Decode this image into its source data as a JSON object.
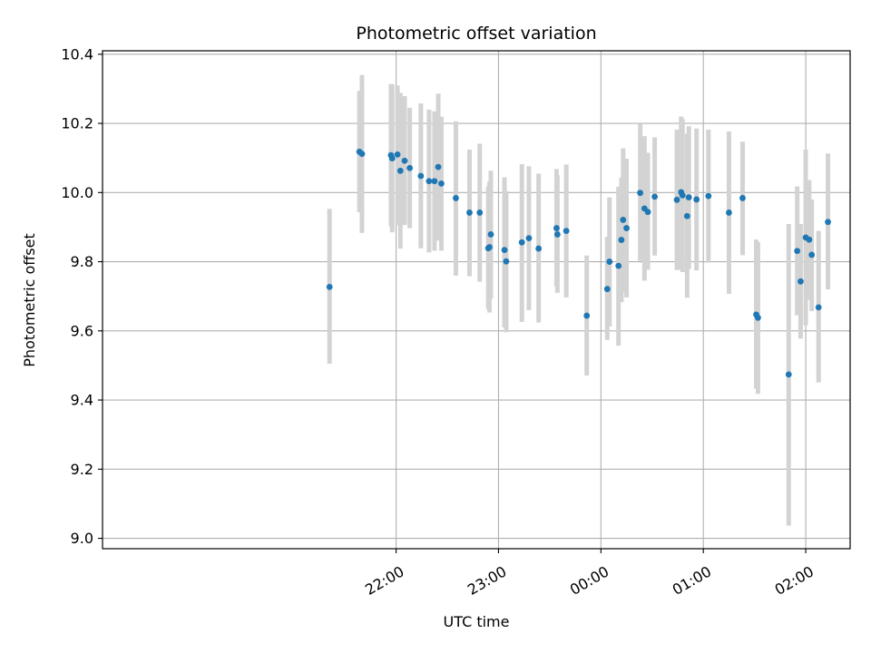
{
  "chart_data": {
    "type": "scatter",
    "title": "Photometric offset variation",
    "xlabel": "UTC time",
    "ylabel": "Photometric offset",
    "x_axis": {
      "unit": "minutes relative to 00:00 UTC",
      "range": [
        -292,
        146
      ],
      "ticks": [
        {
          "value": -120,
          "label": "22:00"
        },
        {
          "value": -60,
          "label": "23:00"
        },
        {
          "value": 0,
          "label": "00:00"
        },
        {
          "value": 60,
          "label": "01:00"
        },
        {
          "value": 120,
          "label": "02:00"
        }
      ]
    },
    "y_axis": {
      "range": [
        8.97,
        10.41
      ],
      "ticks": [
        {
          "value": 9.0,
          "label": "9.0"
        },
        {
          "value": 9.2,
          "label": "9.2"
        },
        {
          "value": 9.4,
          "label": "9.4"
        },
        {
          "value": 9.6,
          "label": "9.6"
        },
        {
          "value": 9.8,
          "label": "9.8"
        },
        {
          "value": 10.0,
          "label": "10.0"
        },
        {
          "value": 10.2,
          "label": "10.2"
        },
        {
          "value": 10.4,
          "label": "10.4"
        }
      ]
    },
    "grid": true,
    "legend": "none",
    "colors": {
      "point": "#1f77b4",
      "errorbar": "#d3d3d3",
      "grid": "#b0b0b0"
    },
    "series": [
      {
        "points": [
          {
            "x": -159,
            "y": 9.727,
            "lo": 9.505,
            "hi": 9.953
          },
          {
            "x": -141.5,
            "y": 10.118,
            "lo": 9.943,
            "hi": 10.294
          },
          {
            "x": -140,
            "y": 10.112,
            "lo": 9.883,
            "hi": 10.34
          },
          {
            "x": -123,
            "y": 10.108,
            "lo": 9.902,
            "hi": 10.314
          },
          {
            "x": -122.3,
            "y": 10.099,
            "lo": 9.885,
            "hi": 10.313
          },
          {
            "x": -119.2,
            "y": 10.11,
            "lo": 9.905,
            "hi": 10.31
          },
          {
            "x": -117.5,
            "y": 10.063,
            "lo": 9.838,
            "hi": 10.288
          },
          {
            "x": -115,
            "y": 10.092,
            "lo": 9.906,
            "hi": 10.279
          },
          {
            "x": -112,
            "y": 10.071,
            "lo": 9.897,
            "hi": 10.245
          },
          {
            "x": -105.5,
            "y": 10.048,
            "lo": 9.839,
            "hi": 10.258
          },
          {
            "x": -100.7,
            "y": 10.033,
            "lo": 9.827,
            "hi": 10.24
          },
          {
            "x": -97.5,
            "y": 10.033,
            "lo": 9.832,
            "hi": 10.235
          },
          {
            "x": -95.3,
            "y": 10.074,
            "lo": 9.861,
            "hi": 10.286
          },
          {
            "x": -93.5,
            "y": 10.026,
            "lo": 9.832,
            "hi": 10.22
          },
          {
            "x": -85,
            "y": 9.984,
            "lo": 9.76,
            "hi": 10.206
          },
          {
            "x": -77,
            "y": 9.942,
            "lo": 9.758,
            "hi": 10.124
          },
          {
            "x": -71,
            "y": 9.942,
            "lo": 9.742,
            "hi": 10.141
          },
          {
            "x": -66,
            "y": 9.839,
            "lo": 9.663,
            "hi": 10.018
          },
          {
            "x": -65.3,
            "y": 9.842,
            "lo": 9.653,
            "hi": 10.032
          },
          {
            "x": -64.5,
            "y": 9.879,
            "lo": 9.693,
            "hi": 10.063
          },
          {
            "x": -56.5,
            "y": 9.834,
            "lo": 9.61,
            "hi": 10.044
          },
          {
            "x": -55.5,
            "y": 9.801,
            "lo": 9.596,
            "hi": 10.004
          },
          {
            "x": -46.3,
            "y": 9.856,
            "lo": 9.626,
            "hi": 10.082
          },
          {
            "x": -42.2,
            "y": 9.868,
            "lo": 9.66,
            "hi": 10.076
          },
          {
            "x": -36.5,
            "y": 9.838,
            "lo": 9.624,
            "hi": 10.055
          },
          {
            "x": -26,
            "y": 9.897,
            "lo": 9.728,
            "hi": 10.068
          },
          {
            "x": -25.5,
            "y": 9.879,
            "lo": 9.71,
            "hi": 10.05
          },
          {
            "x": -20.3,
            "y": 9.889,
            "lo": 9.697,
            "hi": 10.081
          },
          {
            "x": -8.3,
            "y": 9.644,
            "lo": 9.471,
            "hi": 9.818
          },
          {
            "x": 3.7,
            "y": 9.721,
            "lo": 9.574,
            "hi": 9.872
          },
          {
            "x": 5,
            "y": 9.8,
            "lo": 9.613,
            "hi": 9.986
          },
          {
            "x": 10.3,
            "y": 9.788,
            "lo": 9.557,
            "hi": 10.017
          },
          {
            "x": 12,
            "y": 9.863,
            "lo": 9.683,
            "hi": 10.043
          },
          {
            "x": 13,
            "y": 9.921,
            "lo": 9.712,
            "hi": 10.128
          },
          {
            "x": 15,
            "y": 9.897,
            "lo": 9.697,
            "hi": 10.098
          },
          {
            "x": 23,
            "y": 9.999,
            "lo": 9.802,
            "hi": 10.198
          },
          {
            "x": 25.5,
            "y": 9.954,
            "lo": 9.745,
            "hi": 10.163
          },
          {
            "x": 27.5,
            "y": 9.944,
            "lo": 9.777,
            "hi": 10.115
          },
          {
            "x": 31.5,
            "y": 9.988,
            "lo": 9.818,
            "hi": 10.16
          },
          {
            "x": 44.5,
            "y": 9.979,
            "lo": 9.776,
            "hi": 10.182
          },
          {
            "x": 47,
            "y": 10.001,
            "lo": 9.777,
            "hi": 10.22
          },
          {
            "x": 47.8,
            "y": 9.992,
            "lo": 9.77,
            "hi": 10.213
          },
          {
            "x": 50.5,
            "y": 9.932,
            "lo": 9.696,
            "hi": 10.17
          },
          {
            "x": 51.5,
            "y": 9.986,
            "lo": 9.779,
            "hi": 10.192
          },
          {
            "x": 56,
            "y": 9.98,
            "lo": 9.775,
            "hi": 10.185
          },
          {
            "x": 63,
            "y": 9.99,
            "lo": 9.797,
            "hi": 10.182
          },
          {
            "x": 75,
            "y": 9.942,
            "lo": 9.707,
            "hi": 10.177
          },
          {
            "x": 83,
            "y": 9.984,
            "lo": 9.819,
            "hi": 10.147
          },
          {
            "x": 91,
            "y": 9.647,
            "lo": 9.433,
            "hi": 9.864
          },
          {
            "x": 92,
            "y": 9.638,
            "lo": 9.418,
            "hi": 9.857
          },
          {
            "x": 110,
            "y": 9.474,
            "lo": 9.037,
            "hi": 9.909
          },
          {
            "x": 115,
            "y": 9.831,
            "lo": 9.645,
            "hi": 10.018
          },
          {
            "x": 117,
            "y": 9.743,
            "lo": 9.578,
            "hi": 9.909
          },
          {
            "x": 120,
            "y": 9.87,
            "lo": 9.616,
            "hi": 10.124
          },
          {
            "x": 122,
            "y": 9.864,
            "lo": 9.69,
            "hi": 10.036
          },
          {
            "x": 123.5,
            "y": 9.82,
            "lo": 9.657,
            "hi": 9.98
          },
          {
            "x": 127.5,
            "y": 9.668,
            "lo": 9.451,
            "hi": 9.889
          },
          {
            "x": 133,
            "y": 9.915,
            "lo": 9.72,
            "hi": 10.113
          }
        ]
      }
    ]
  }
}
